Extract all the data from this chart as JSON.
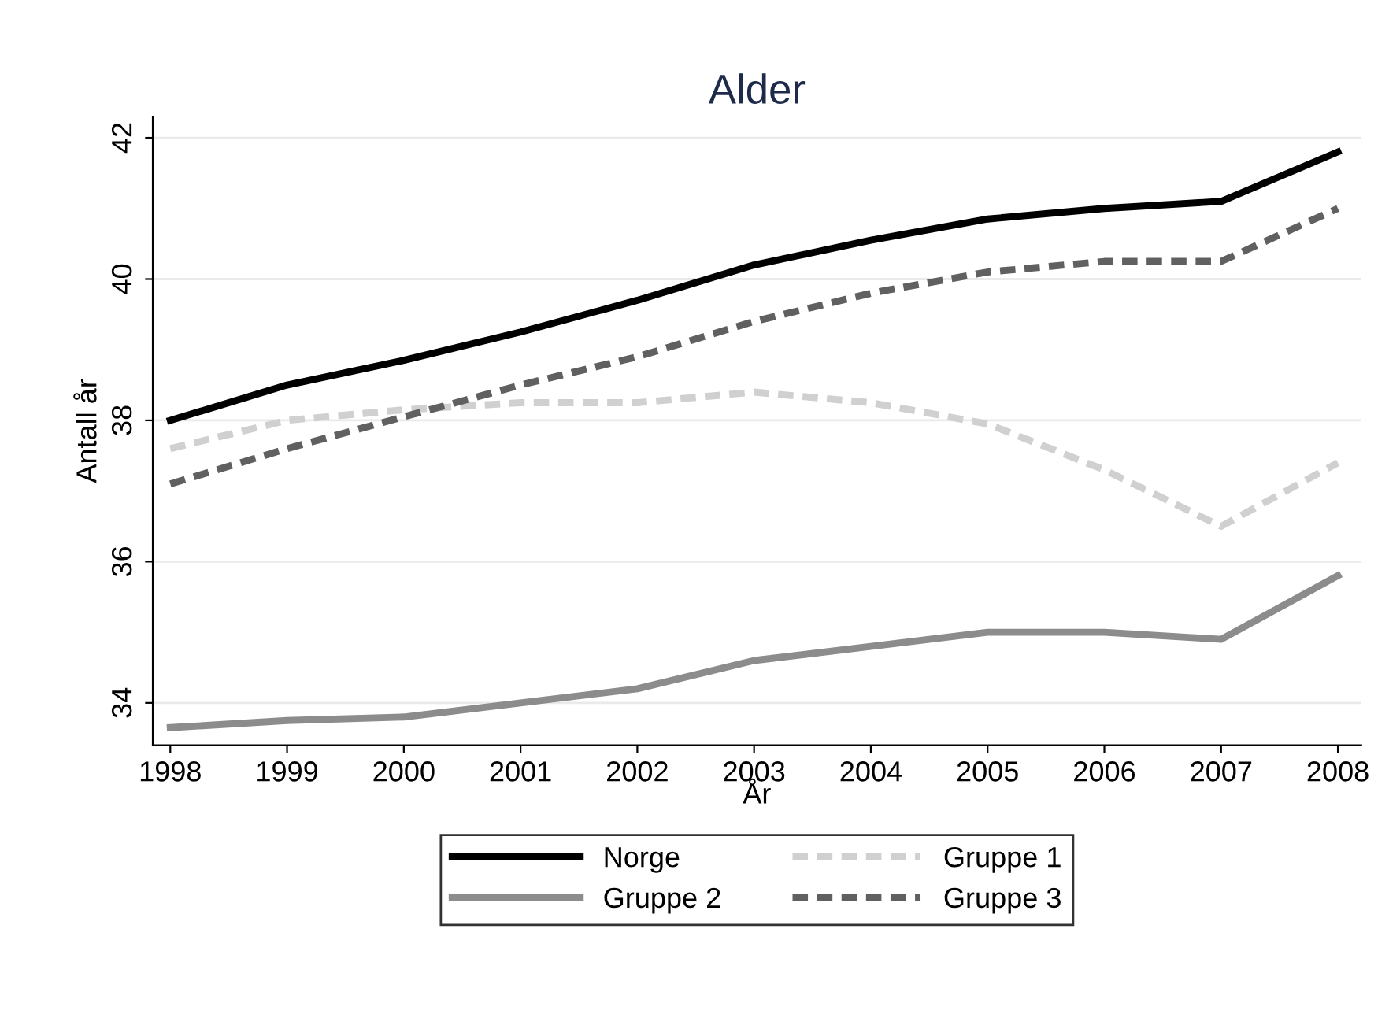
{
  "chart_data": {
    "type": "line",
    "title": "Alder",
    "xlabel": "År",
    "ylabel": "Antall år",
    "x": [
      1998,
      1999,
      2000,
      2001,
      2002,
      2003,
      2004,
      2005,
      2006,
      2007,
      2008
    ],
    "series": [
      {
        "name": "Norge",
        "color": "#000000",
        "line_style": "solid",
        "values": [
          38.0,
          38.5,
          38.85,
          39.25,
          39.7,
          40.2,
          40.55,
          40.85,
          41.0,
          41.1,
          41.8
        ]
      },
      {
        "name": "Gruppe 1",
        "color": "#d0d0d0",
        "line_style": "dashed",
        "values": [
          37.6,
          38.0,
          38.15,
          38.25,
          38.25,
          38.4,
          38.25,
          37.95,
          37.3,
          36.5,
          37.4
        ]
      },
      {
        "name": "Gruppe 2",
        "color": "#8c8c8c",
        "line_style": "solid",
        "values": [
          33.65,
          33.75,
          33.8,
          34.0,
          34.2,
          34.6,
          34.8,
          35.0,
          35.0,
          34.9,
          35.8
        ]
      },
      {
        "name": "Gruppe 3",
        "color": "#606060",
        "line_style": "dashed",
        "values": [
          37.1,
          37.6,
          38.05,
          38.5,
          38.9,
          39.4,
          39.8,
          40.1,
          40.25,
          40.25,
          41.0
        ]
      }
    ],
    "xlim": [
      1997.85,
      2008.2
    ],
    "xticks": [
      1998,
      1999,
      2000,
      2001,
      2002,
      2003,
      2004,
      2005,
      2006,
      2007,
      2008
    ],
    "ylim": [
      33.4,
      42.3
    ],
    "yticks": [
      34,
      36,
      38,
      40,
      42
    ],
    "grid": "y",
    "legend": "bottom",
    "marker": "none"
  }
}
